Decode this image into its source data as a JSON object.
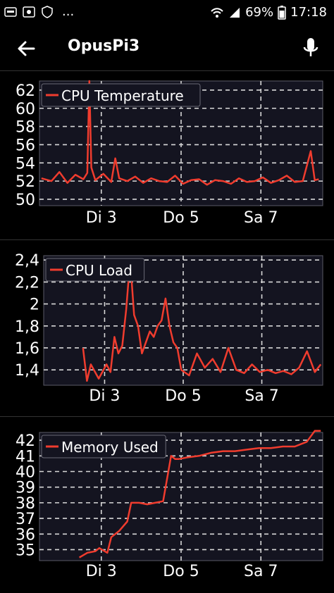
{
  "status": {
    "battery": "69%",
    "time": "17:18",
    "dots": "..."
  },
  "app": {
    "title": "OpusPi3"
  },
  "charts": [
    {
      "type": "line",
      "legend": "CPU Temperature",
      "yticks": [
        "50",
        "52",
        "54",
        "56",
        "58",
        "60",
        "62"
      ],
      "ylim": [
        49.3,
        63
      ],
      "xticks": [
        "Di 3",
        "Do 5",
        "Sa 7"
      ],
      "xtick_pos": [
        2.85,
        4.85,
        6.85
      ],
      "xlim": [
        1.3,
        8.4
      ],
      "color": "#f03c2e"
    },
    {
      "type": "line",
      "legend": "CPU Load",
      "yticks": [
        "1,4",
        "1,6",
        "1,8",
        "2",
        "2,2",
        "2,4"
      ],
      "ylim": [
        1.26,
        2.44
      ],
      "xticks": [
        "Di 3",
        "Do 5",
        "Sa 7"
      ],
      "xtick_pos": [
        2.85,
        4.85,
        6.85
      ],
      "xlim": [
        1.3,
        8.4
      ],
      "color": "#f03c2e"
    },
    {
      "type": "line",
      "legend": "Memory Used",
      "yticks": [
        "35",
        "36",
        "37",
        "38",
        "39",
        "40",
        "41",
        "42"
      ],
      "ylim": [
        34.3,
        42.5
      ],
      "xticks": [
        "Di 3",
        "Do 5",
        "Sa 7"
      ],
      "xtick_pos": [
        2.85,
        4.85,
        6.85
      ],
      "xlim": [
        1.3,
        8.4
      ],
      "color": "#f03c2e"
    }
  ],
  "chart_data": [
    {
      "type": "line",
      "title": "",
      "series": [
        {
          "name": "CPU Temperature",
          "x": [
            1.35,
            1.6,
            1.8,
            2.0,
            2.2,
            2.4,
            2.5,
            2.55,
            2.6,
            2.7,
            2.9,
            3.1,
            3.2,
            3.3,
            3.5,
            3.7,
            3.9,
            4.1,
            4.3,
            4.5,
            4.7,
            4.9,
            5.1,
            5.3,
            5.5,
            5.7,
            5.9,
            6.1,
            6.3,
            6.5,
            6.7,
            6.9,
            7.1,
            7.3,
            7.5,
            7.7,
            7.9,
            8.1,
            8.2,
            8.3
          ],
          "y": [
            52.3,
            52.0,
            53.0,
            51.8,
            52.7,
            52.2,
            52.9,
            63.0,
            53.5,
            52.1,
            52.8,
            51.9,
            54.5,
            52.3,
            52.0,
            52.5,
            51.8,
            52.3,
            52.0,
            51.9,
            52.6,
            51.7,
            52.1,
            52.2,
            51.6,
            52.1,
            52.0,
            51.7,
            52.3,
            51.9,
            52.0,
            52.4,
            51.8,
            52.1,
            52.6,
            51.9,
            52.0,
            55.3,
            52.1,
            52.2
          ]
        }
      ],
      "ylim": [
        49.3,
        63
      ]
    },
    {
      "type": "line",
      "title": "",
      "series": [
        {
          "name": "CPU Load",
          "x": [
            2.3,
            2.4,
            2.5,
            2.7,
            2.9,
            3.0,
            3.1,
            3.2,
            3.3,
            3.4,
            3.5,
            3.6,
            3.7,
            3.8,
            3.9,
            4.0,
            4.1,
            4.2,
            4.3,
            4.4,
            4.5,
            4.6,
            4.7,
            4.8,
            5.0,
            5.2,
            5.4,
            5.6,
            5.8,
            6.0,
            6.2,
            6.4,
            6.6,
            6.8,
            7.0,
            7.2,
            7.4,
            7.6,
            7.8,
            8.0,
            8.2,
            8.35
          ],
          "y": [
            1.6,
            1.3,
            1.45,
            1.32,
            1.45,
            1.38,
            1.7,
            1.55,
            1.62,
            1.95,
            2.4,
            1.9,
            1.8,
            1.55,
            1.65,
            1.75,
            1.7,
            1.8,
            1.85,
            2.05,
            1.8,
            1.65,
            1.6,
            1.4,
            1.35,
            1.55,
            1.42,
            1.5,
            1.38,
            1.6,
            1.4,
            1.37,
            1.45,
            1.38,
            1.4,
            1.37,
            1.39,
            1.36,
            1.42,
            1.57,
            1.38,
            1.45
          ]
        }
      ],
      "ylim": [
        1.26,
        2.44
      ]
    },
    {
      "type": "line",
      "title": "",
      "series": [
        {
          "name": "Memory Used",
          "x": [
            2.3,
            2.5,
            2.7,
            2.8,
            3.0,
            3.1,
            3.3,
            3.5,
            3.6,
            3.8,
            4.0,
            4.2,
            4.4,
            4.6,
            4.7,
            4.8,
            5.0,
            5.3,
            5.6,
            5.9,
            6.2,
            6.5,
            6.8,
            7.1,
            7.4,
            7.7,
            8.0,
            8.2,
            8.35
          ],
          "y": [
            34.5,
            34.8,
            34.9,
            35.1,
            34.8,
            35.8,
            36.2,
            36.8,
            38.0,
            38.0,
            37.9,
            38.0,
            38.1,
            41.0,
            40.8,
            40.8,
            40.9,
            41.0,
            41.2,
            41.3,
            41.3,
            41.4,
            41.5,
            41.5,
            41.6,
            41.6,
            41.9,
            42.6,
            42.6
          ]
        }
      ],
      "ylim": [
        34.3,
        42.5
      ]
    }
  ]
}
